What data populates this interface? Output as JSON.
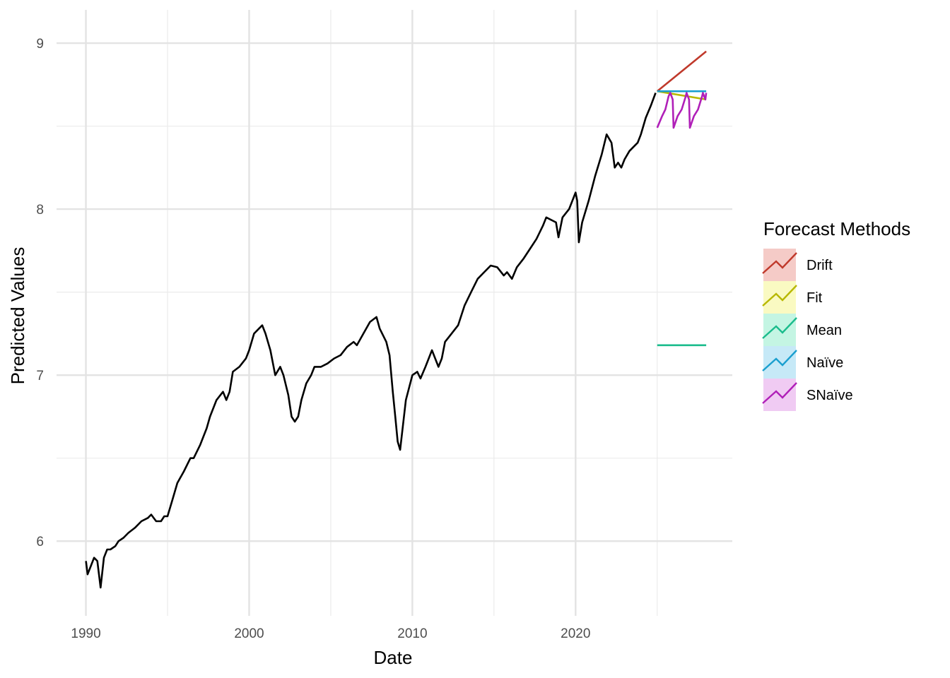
{
  "chart_data": {
    "type": "line",
    "title": "",
    "xlabel": "Date",
    "ylabel": "Predicted Values",
    "xlim": [
      1988.2,
      2029.6
    ],
    "ylim": [
      5.55,
      9.2
    ],
    "x_ticks": [
      1990,
      2000,
      2010,
      2020
    ],
    "x_tick_labels": [
      "1990",
      "2000",
      "2010",
      "2020"
    ],
    "y_ticks": [
      6,
      7,
      8,
      9
    ],
    "y_tick_labels": [
      "6",
      "7",
      "8",
      "9"
    ],
    "grid": true,
    "legend": {
      "title": "Forecast Methods",
      "position": "right"
    },
    "history": {
      "x": [
        1990.0,
        1990.1,
        1990.3,
        1990.5,
        1990.7,
        1990.8,
        1990.9,
        1991.1,
        1991.3,
        1991.5,
        1991.8,
        1992.0,
        1992.3,
        1992.6,
        1993.0,
        1993.4,
        1993.8,
        1994.0,
        1994.3,
        1994.6,
        1994.8,
        1995.0,
        1995.3,
        1995.6,
        1996.0,
        1996.4,
        1996.6,
        1997.0,
        1997.4,
        1997.6,
        1998.0,
        1998.4,
        1998.6,
        1998.8,
        1999.0,
        1999.4,
        1999.8,
        2000.0,
        2000.3,
        2000.6,
        2000.8,
        2001.0,
        2001.3,
        2001.6,
        2001.9,
        2002.1,
        2002.4,
        2002.6,
        2002.8,
        2003.0,
        2003.2,
        2003.5,
        2003.8,
        2004.0,
        2004.4,
        2004.8,
        2005.2,
        2005.6,
        2006.0,
        2006.4,
        2006.6,
        2007.0,
        2007.4,
        2007.8,
        2008.0,
        2008.4,
        2008.6,
        2008.8,
        2008.95,
        2009.1,
        2009.25,
        2009.6,
        2010.0,
        2010.3,
        2010.5,
        2010.8,
        2011.2,
        2011.6,
        2011.8,
        2012.0,
        2012.4,
        2012.8,
        2013.2,
        2013.6,
        2014.0,
        2014.4,
        2014.8,
        2015.2,
        2015.6,
        2015.8,
        2016.1,
        2016.4,
        2016.8,
        2017.2,
        2017.6,
        2018.0,
        2018.2,
        2018.6,
        2018.8,
        2018.95,
        2019.2,
        2019.6,
        2020.0,
        2020.1,
        2020.2,
        2020.4,
        2020.8,
        2021.2,
        2021.6,
        2021.9,
        2022.2,
        2022.4,
        2022.6,
        2022.8,
        2023.0,
        2023.3,
        2023.6,
        2023.8,
        2024.0,
        2024.3,
        2024.6,
        2024.9
      ],
      "y": [
        5.88,
        5.8,
        5.85,
        5.9,
        5.88,
        5.8,
        5.72,
        5.9,
        5.95,
        5.95,
        5.97,
        6.0,
        6.02,
        6.05,
        6.08,
        6.12,
        6.14,
        6.16,
        6.12,
        6.12,
        6.15,
        6.15,
        6.25,
        6.35,
        6.42,
        6.5,
        6.5,
        6.58,
        6.68,
        6.75,
        6.85,
        6.9,
        6.85,
        6.9,
        7.02,
        7.05,
        7.1,
        7.15,
        7.25,
        7.28,
        7.3,
        7.25,
        7.15,
        7.0,
        7.05,
        7.0,
        6.88,
        6.75,
        6.72,
        6.75,
        6.85,
        6.95,
        7.0,
        7.05,
        7.05,
        7.07,
        7.1,
        7.12,
        7.17,
        7.2,
        7.18,
        7.25,
        7.32,
        7.35,
        7.28,
        7.2,
        7.12,
        6.9,
        6.75,
        6.6,
        6.55,
        6.85,
        7.0,
        7.02,
        6.98,
        7.05,
        7.15,
        7.05,
        7.1,
        7.2,
        7.25,
        7.3,
        7.42,
        7.5,
        7.58,
        7.62,
        7.66,
        7.65,
        7.6,
        7.62,
        7.58,
        7.65,
        7.7,
        7.76,
        7.82,
        7.9,
        7.95,
        7.93,
        7.92,
        7.83,
        7.95,
        8.0,
        8.1,
        8.05,
        7.8,
        7.92,
        8.05,
        8.2,
        8.33,
        8.45,
        8.4,
        8.25,
        8.28,
        8.25,
        8.3,
        8.35,
        8.38,
        8.4,
        8.45,
        8.55,
        8.62,
        8.7
      ]
    },
    "series": [
      {
        "name": "Drift",
        "color": "#C0392B",
        "x": [
          2025.0,
          2028.0
        ],
        "y": [
          8.71,
          8.95
        ]
      },
      {
        "name": "Fit",
        "color": "#B8B800",
        "x": [
          2025.0,
          2028.0
        ],
        "y": [
          8.71,
          8.66
        ]
      },
      {
        "name": "Mean",
        "color": "#1ABC8C",
        "x": [
          2025.0,
          2028.0
        ],
        "y": [
          7.18,
          7.18
        ]
      },
      {
        "name": "Naïve",
        "color": "#1A9FCF",
        "x": [
          2025.0,
          2028.0
        ],
        "y": [
          8.71,
          8.71
        ]
      },
      {
        "name": "SNaïve",
        "color": "#B01FB8",
        "x": [
          2025.0,
          2025.3,
          2025.5,
          2025.7,
          2025.8,
          2025.95,
          2026.0,
          2026.25,
          2026.5,
          2026.75,
          2026.8,
          2026.95,
          2027.0,
          2027.25,
          2027.5,
          2027.75,
          2027.8,
          2027.95,
          2028.0
        ],
        "y": [
          8.49,
          8.56,
          8.6,
          8.68,
          8.7,
          8.66,
          8.49,
          8.56,
          8.6,
          8.68,
          8.7,
          8.66,
          8.49,
          8.56,
          8.6,
          8.68,
          8.7,
          8.66,
          8.7
        ]
      }
    ],
    "legend_fills": [
      "#F5CBC7",
      "#FAFAC2",
      "#C4F5E3",
      "#C6E9F7",
      "#F0CBF3"
    ]
  }
}
